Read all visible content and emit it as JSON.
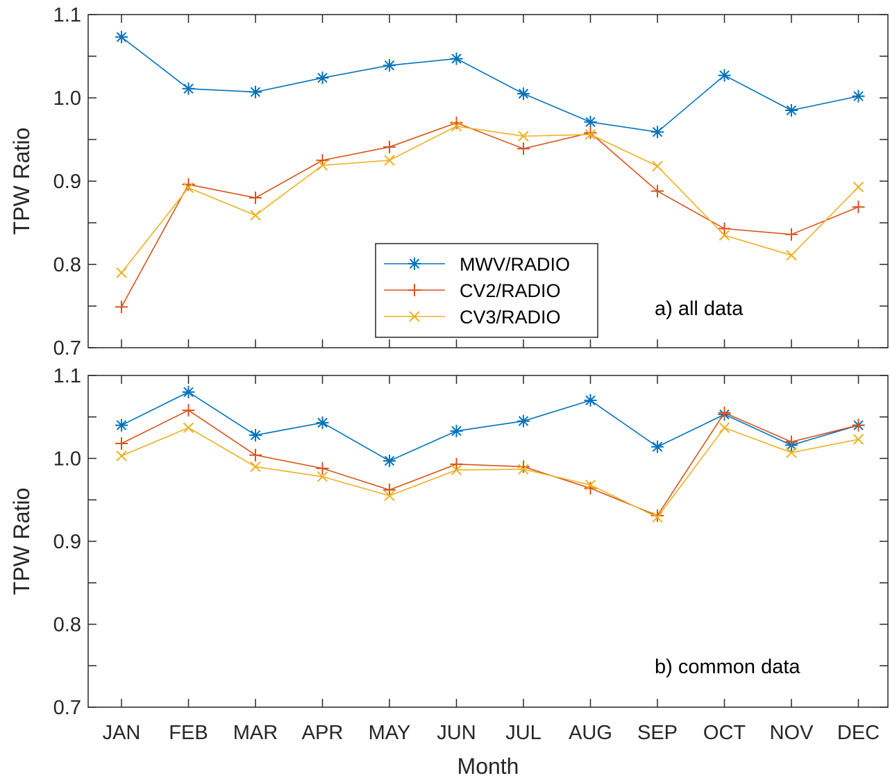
{
  "chart_data": [
    {
      "type": "line",
      "panel": "top",
      "annotation": "a) all data",
      "ylabel": "TPW Ratio",
      "xlabel": "",
      "ylim": [
        0.7,
        1.1
      ],
      "yticks": [
        "0.7",
        "0.8",
        "0.9",
        "1.0",
        "1.1"
      ],
      "categories": [
        "JAN",
        "FEB",
        "MAR",
        "APR",
        "MAY",
        "JUN",
        "JUL",
        "AUG",
        "SEP",
        "OCT",
        "NOV",
        "DEC"
      ],
      "grid": false,
      "legend": "center",
      "series": [
        {
          "name": "MWV/RADIO",
          "color": "#0072BD",
          "marker": "asterisk",
          "values": [
            1.073,
            1.011,
            1.007,
            1.024,
            1.039,
            1.047,
            1.005,
            0.971,
            0.959,
            1.027,
            0.985,
            1.002
          ]
        },
        {
          "name": "CV2/RADIO",
          "color": "#D95319",
          "marker": "plus",
          "values": [
            0.749,
            0.896,
            0.88,
            0.925,
            0.941,
            0.97,
            0.939,
            0.958,
            0.888,
            0.843,
            0.836,
            0.869
          ]
        },
        {
          "name": "CV3/RADIO",
          "color": "#EDB120",
          "marker": "x",
          "values": [
            0.79,
            0.892,
            0.859,
            0.919,
            0.925,
            0.966,
            0.954,
            0.956,
            0.918,
            0.835,
            0.811,
            0.893
          ]
        }
      ]
    },
    {
      "type": "line",
      "panel": "bottom",
      "annotation": "b) common data",
      "ylabel": "TPW Ratio",
      "xlabel": "Month",
      "ylim": [
        0.7,
        1.1
      ],
      "yticks": [
        "0.7",
        "0.8",
        "0.9",
        "1.0",
        "1.1"
      ],
      "categories": [
        "JAN",
        "FEB",
        "MAR",
        "APR",
        "MAY",
        "JUN",
        "JUL",
        "AUG",
        "SEP",
        "OCT",
        "NOV",
        "DEC"
      ],
      "grid": false,
      "series": [
        {
          "color": "#0072BD",
          "marker": "asterisk",
          "values": [
            1.04,
            1.08,
            1.028,
            1.043,
            0.997,
            1.033,
            1.045,
            1.07,
            1.014,
            1.053,
            1.016,
            1.04
          ]
        },
        {
          "color": "#D95319",
          "marker": "plus",
          "values": [
            1.018,
            1.058,
            1.004,
            0.988,
            0.962,
            0.993,
            0.99,
            0.964,
            0.931,
            1.055,
            1.02,
            1.04
          ]
        },
        {
          "color": "#EDB120",
          "marker": "x",
          "values": [
            1.003,
            1.037,
            0.99,
            0.978,
            0.955,
            0.986,
            0.987,
            0.968,
            0.929,
            1.037,
            1.007,
            1.023
          ]
        }
      ]
    }
  ]
}
